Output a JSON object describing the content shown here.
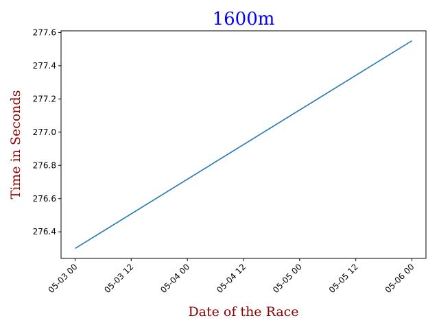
{
  "chart_data": {
    "type": "line",
    "title": "1600m",
    "xlabel": "Date of the Race",
    "ylabel": "Time in Seconds",
    "x_ticks": [
      "05-03 00",
      "05-03 12",
      "05-04 00",
      "05-04 12",
      "05-05 00",
      "05-05 12",
      "05-06 00"
    ],
    "y_ticks": [
      "276.4",
      "276.6",
      "276.8",
      "277.0",
      "277.2",
      "277.4",
      "277.6"
    ],
    "xlim": [
      "05-02 21",
      "05-06 03"
    ],
    "ylim": [
      276.24,
      277.61
    ],
    "grid": false,
    "series": [
      {
        "x": [
          "05-03 00",
          "05-06 00"
        ],
        "y": [
          276.3,
          277.55
        ],
        "color": "#1f77b4"
      }
    ],
    "colors": {
      "title": "#0000ff",
      "axis_labels": "#8b0000",
      "line": "#1f77b4"
    }
  }
}
